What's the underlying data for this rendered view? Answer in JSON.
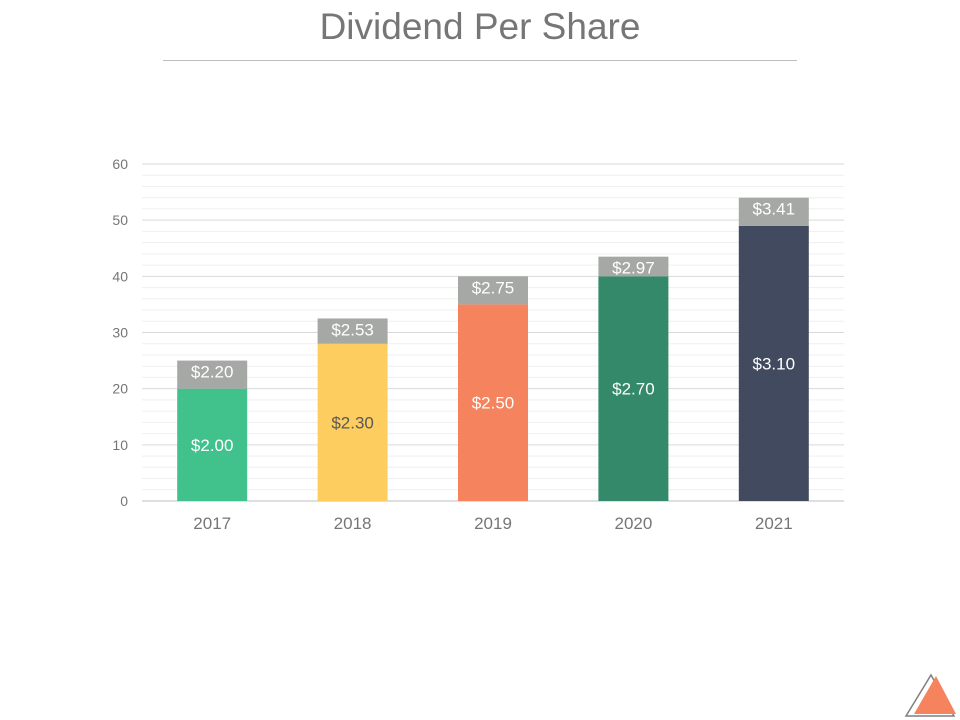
{
  "slide": {
    "title": "Dividend Per Share"
  },
  "chart_data": {
    "type": "bar",
    "stacked": true,
    "categories": [
      "2017",
      "2018",
      "2019",
      "2020",
      "2021"
    ],
    "series": [
      {
        "values": [
          20,
          28,
          35,
          40,
          49
        ],
        "labels": [
          "$2.00",
          "$2.30",
          "$2.50",
          "$2.70",
          "$3.10"
        ],
        "colors": [
          "#41c18b",
          "#fdcd60",
          "#f5835d",
          "#33896a",
          "#414a5e"
        ],
        "label_colors": [
          "#ffffff",
          "#595959",
          "#ffffff",
          "#ffffff",
          "#ffffff"
        ]
      },
      {
        "values": [
          5,
          4.5,
          5,
          3.5,
          5
        ],
        "labels": [
          "$2.20",
          "$2.53",
          "$2.75",
          "$2.97",
          "$3.41"
        ],
        "colors": [
          "#a5a8a4",
          "#a5a8a4",
          "#a5a8a4",
          "#a5a8a4",
          "#a5a8a4"
        ],
        "label_colors": [
          "#ffffff",
          "#ffffff",
          "#ffffff",
          "#ffffff",
          "#ffffff"
        ]
      }
    ],
    "ylim": [
      0,
      60
    ],
    "yticks": [
      0,
      10,
      20,
      30,
      40,
      50,
      60
    ],
    "grid": true,
    "legend": "none"
  },
  "colors": {
    "axis_text": "#767676",
    "gridline": "#d9d9d9",
    "minor_gridline": "#efefef",
    "logo_fill": "#f5835d"
  },
  "icons": {
    "corner_logo": "triangle-logo-icon"
  }
}
